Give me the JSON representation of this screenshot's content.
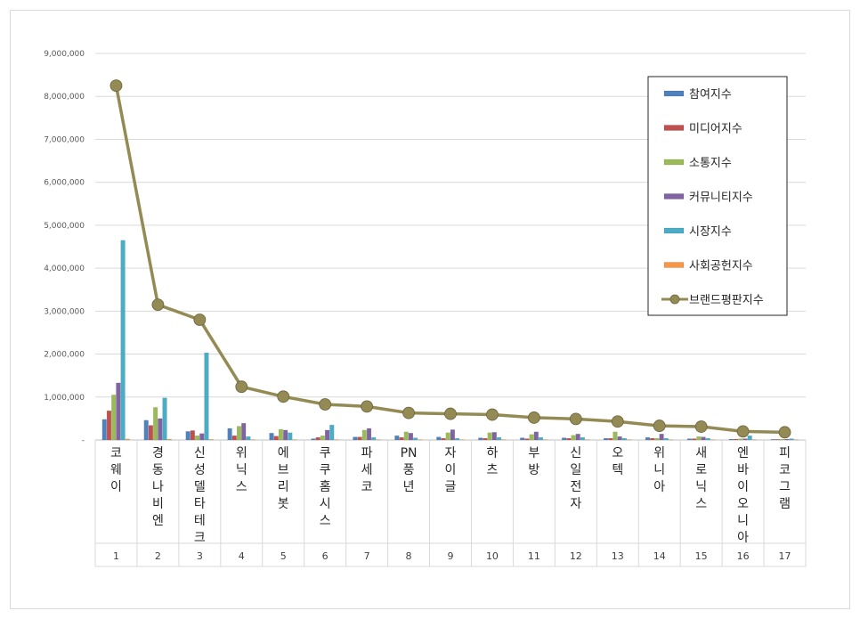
{
  "chart_data": {
    "type": "bar",
    "title": "",
    "xlabel": "",
    "ylabel": "",
    "ylim": [
      0,
      9000000
    ],
    "yticks": [
      "-",
      "1,000,000",
      "2,000,000",
      "3,000,000",
      "4,000,000",
      "5,000,000",
      "6,000,000",
      "7,000,000",
      "8,000,000",
      "9,000,000"
    ],
    "grid": true,
    "legend_position": "top-right",
    "categories": [
      "코웨이",
      "경동나비엔",
      "신성델타테크",
      "위닉스",
      "에브리봇",
      "쿠쿠홈시스",
      "파세코",
      "PN풍년",
      "자이글",
      "하츠",
      "부방",
      "신일전자",
      "오텍",
      "위니아",
      "새로닉스",
      "엔바이오니아",
      "피코그램"
    ],
    "ranks": [
      "1",
      "2",
      "3",
      "4",
      "5",
      "6",
      "7",
      "8",
      "9",
      "10",
      "11",
      "12",
      "13",
      "14",
      "15",
      "16",
      "17"
    ],
    "series": [
      {
        "name": "참여지수",
        "kind": "bar",
        "color": "#4f81bd",
        "values": [
          480000,
          460000,
          200000,
          270000,
          160000,
          30000,
          70000,
          100000,
          70000,
          50000,
          50000,
          50000,
          40000,
          60000,
          30000,
          20000,
          15000
        ]
      },
      {
        "name": "미디어지수",
        "kind": "bar",
        "color": "#c0504d",
        "values": [
          680000,
          340000,
          220000,
          100000,
          90000,
          60000,
          70000,
          60000,
          40000,
          40000,
          30000,
          40000,
          40000,
          40000,
          30000,
          20000,
          15000
        ]
      },
      {
        "name": "소통지수",
        "kind": "bar",
        "color": "#9bbb59",
        "values": [
          1050000,
          760000,
          100000,
          320000,
          250000,
          100000,
          230000,
          190000,
          170000,
          170000,
          130000,
          110000,
          190000,
          40000,
          80000,
          30000,
          20000
        ]
      },
      {
        "name": "커뮤니티지수",
        "kind": "bar",
        "color": "#8064a2",
        "values": [
          1330000,
          500000,
          150000,
          390000,
          230000,
          230000,
          270000,
          160000,
          240000,
          180000,
          190000,
          140000,
          80000,
          140000,
          70000,
          30000,
          20000
        ]
      },
      {
        "name": "시장지수",
        "kind": "bar",
        "color": "#4bacc6",
        "values": [
          4650000,
          980000,
          2030000,
          80000,
          170000,
          350000,
          60000,
          50000,
          40000,
          60000,
          60000,
          60000,
          40000,
          40000,
          40000,
          100000,
          30000
        ]
      },
      {
        "name": "사회공헌지수",
        "kind": "bar",
        "color": "#f79646",
        "values": [
          25000,
          20000,
          15000,
          10000,
          10000,
          10000,
          10000,
          10000,
          10000,
          10000,
          10000,
          10000,
          10000,
          10000,
          10000,
          10000,
          10000
        ]
      },
      {
        "name": "브랜드평판지수",
        "kind": "line",
        "color": "#948a54",
        "values": [
          8250000,
          3150000,
          2800000,
          1240000,
          1010000,
          830000,
          780000,
          630000,
          610000,
          590000,
          520000,
          490000,
          430000,
          330000,
          310000,
          200000,
          180000
        ]
      }
    ]
  }
}
